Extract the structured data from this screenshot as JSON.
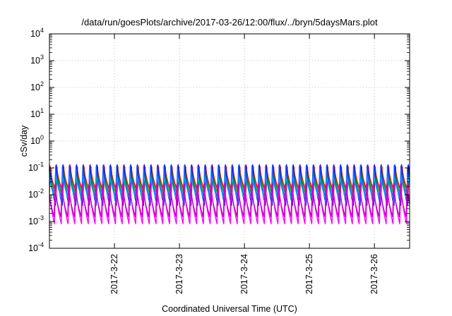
{
  "chart_data": {
    "type": "line",
    "title": "/data/run/goesPlots/archive/2017-03-26/12:00/flux/../bryn/5daysMars.plot",
    "xlabel": "Coordinated Universal Time (UTC)",
    "ylabel": "cSv/day",
    "yscale": "log",
    "ylim": [
      0.0001,
      10000
    ],
    "y_ticks": [
      {
        "base": "10",
        "exp": "-4"
      },
      {
        "base": "10",
        "exp": "-3"
      },
      {
        "base": "10",
        "exp": "-2"
      },
      {
        "base": "10",
        "exp": "-1"
      },
      {
        "base": "10",
        "exp": "0"
      },
      {
        "base": "10",
        "exp": "1"
      },
      {
        "base": "10",
        "exp": "2"
      },
      {
        "base": "10",
        "exp": "3"
      },
      {
        "base": "10",
        "exp": "4"
      }
    ],
    "xlim": [
      "2017-03-21T00:00",
      "2017-03-26T13:00"
    ],
    "x_ticks": [
      "2017-3-22",
      "2017-3-23",
      "2017-3-24",
      "2017-3-25",
      "2017-3-26"
    ],
    "grid": true,
    "oscillation_period_hours": 2.5,
    "series": [
      {
        "color": "#ff0000",
        "peak": 0.11,
        "trough": 0.012
      },
      {
        "color": "#00aa00",
        "peak": 0.1,
        "trough": 0.009
      },
      {
        "color": "#0000ff",
        "peak": 0.13,
        "trough": 0.004
      },
      {
        "color": "#00c8c8",
        "peak": 0.07,
        "trough": 0.006
      },
      {
        "color": "#2060ff",
        "peak": 0.12,
        "trough": 0.008
      },
      {
        "color": "#ff00ff",
        "peak": 0.035,
        "trough": 0.0008
      },
      {
        "color": "#c800c8",
        "peak": 0.025,
        "trough": 0.0015
      }
    ]
  }
}
